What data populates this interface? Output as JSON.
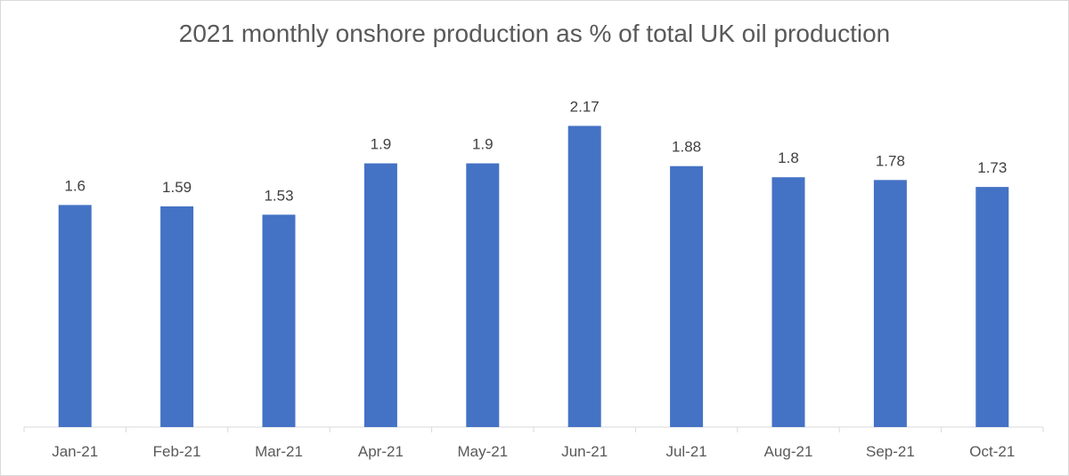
{
  "chart_data": {
    "type": "bar",
    "title": "2021 monthly onshore production as % of total UK oil production",
    "categories": [
      "Jan-21",
      "Feb-21",
      "Mar-21",
      "Apr-21",
      "May-21",
      "Jun-21",
      "Jul-21",
      "Aug-21",
      "Sep-21",
      "Oct-21"
    ],
    "values": [
      1.6,
      1.59,
      1.53,
      1.9,
      1.9,
      2.17,
      1.88,
      1.8,
      1.78,
      1.73
    ],
    "data_labels": [
      "1.6",
      "1.59",
      "1.53",
      "1.9",
      "1.9",
      "2.17",
      "1.88",
      "1.8",
      "1.78",
      "1.73"
    ],
    "xlabel": "",
    "ylabel": "",
    "ylim": [
      0,
      2.4
    ],
    "grid": false,
    "legend": "none",
    "bar_color": "#4472c4"
  }
}
